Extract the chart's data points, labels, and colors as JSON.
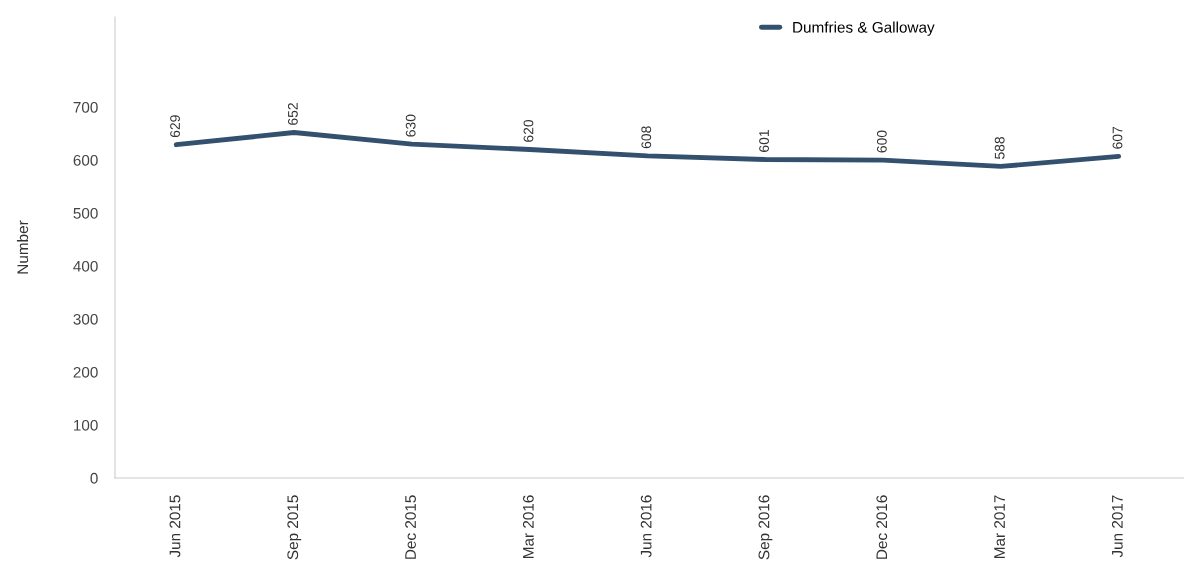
{
  "chart_data": {
    "type": "line",
    "ylabel": "Number",
    "categories": [
      "Jun 2015",
      "Sep 2015",
      "Dec 2015",
      "Mar 2016",
      "Jun 2016",
      "Sep 2016",
      "Dec 2016",
      "Mar 2017",
      "Jun 2017"
    ],
    "series": [
      {
        "name": "Dumfries & Galloway",
        "color": "#34506f",
        "values": [
          629,
          652,
          630,
          620,
          608,
          601,
          600,
          588,
          607
        ]
      }
    ],
    "ylim": [
      0,
      870
    ],
    "yticks": [
      0,
      100,
      200,
      300,
      400,
      500,
      600,
      700
    ],
    "data_labels": true,
    "grid": false,
    "legend": "top right",
    "marker": "none",
    "line_style": "solid"
  }
}
